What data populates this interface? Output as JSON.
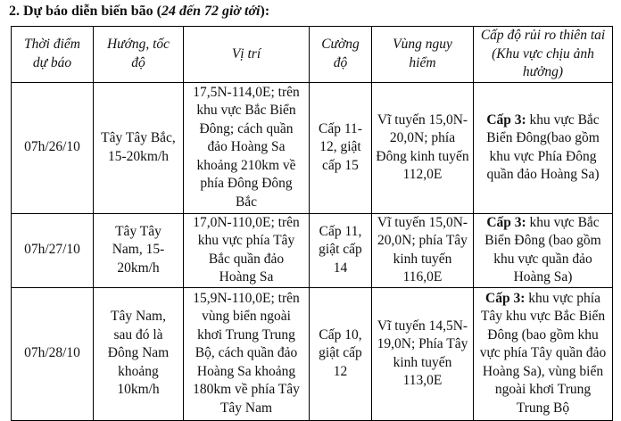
{
  "section_title": {
    "main": "2. Dự báo diễn biến bão (",
    "italic": "24 đến 72 giờ tới",
    "end": "):"
  },
  "headers": [
    "Thời điểm dự báo",
    "Hướng, tốc độ",
    "Vị trí",
    "Cường độ",
    "Vùng nguy hiểm",
    "Cấp độ rủi ro thiên tai (Khu vực chịu ảnh hưởng)"
  ],
  "rows": [
    {
      "time": "07h/26/10",
      "direction": "Tây Tây Bắc, 15-20km/h",
      "position": "17,5N-114,0E; trên khu vực Bắc Biển Đông; cách quần đảo Hoàng Sa khoảng 210km về phía Đông Đông Bắc",
      "intensity": "Cấp 11-12, giật cấp 15",
      "danger_zone": "Vĩ tuyến 15,0N-20,0N; phía Đông kinh tuyến 112,0E",
      "risk_level": "Cấp 3:",
      "risk_area": " khu vực Bắc Biển Đông(bao gồm khu vực Phía Đông quần đảo Hoàng Sa)"
    },
    {
      "time": "07h/27/10",
      "direction": "Tây Tây Nam, 15-20km/h",
      "position": "17,0N-110,0E; trên khu vực phía Tây Bắc quần đảo Hoàng Sa",
      "intensity": "Cấp 11, giật cấp 14",
      "danger_zone": "Vĩ tuyến 15,0N-20,0N; phía Tây kinh tuyến 116,0E",
      "risk_level": "Cấp 3:",
      "risk_area": " khu vực Bắc Biển Đông (bao gồm khu vực quần đảo Hoàng Sa)"
    },
    {
      "time": "07h/28/10",
      "direction": "Tây Nam, sau đó là Đông Nam khoảng 10km/h",
      "position": "15,9N-110,0E;  trên vùng biển ngoài khơi Trung Trung Bộ, cách quần đảo Hoàng Sa khoảng 180km về phía Tây Tây Nam",
      "intensity": "Cấp 10, giật cấp 12",
      "danger_zone": "Vĩ tuyến 14,5N-19,0N; Phía Tây kinh tuyến 113,0E",
      "risk_level": "Cấp 3:",
      "risk_area": " khu vực phía Tây khu vực Bắc Biển Đông (bao gồm khu vực phía Tây quần đảo Hoàng Sa), vùng biển ngoài khơi Trung Trung Bộ"
    }
  ]
}
